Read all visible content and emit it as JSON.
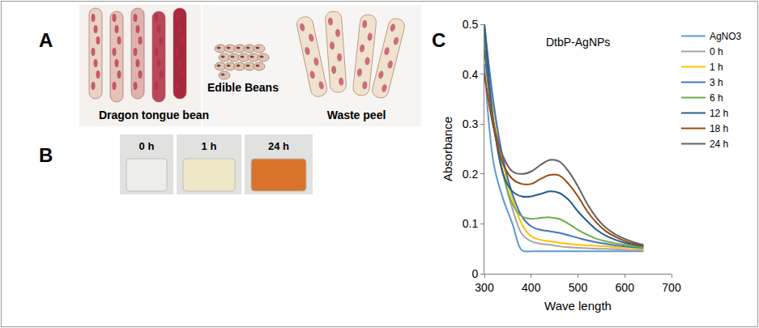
{
  "figure": {
    "panels": [
      {
        "letter": "A",
        "labels": [
          "Dragon tongue bean",
          "Edible Beans",
          "Waste peel"
        ]
      },
      {
        "letter": "B",
        "labels": [
          "0 h",
          "1 h",
          "24 h"
        ]
      },
      {
        "letter": "C"
      }
    ]
  },
  "chart_data": {
    "type": "line",
    "title": "DtbP-AgNPs",
    "x_label": "Wave length",
    "y_label": "Absorbance",
    "x": [
      300,
      320,
      340,
      360,
      380,
      400,
      420,
      440,
      460,
      480,
      500,
      520,
      540,
      560,
      580,
      600,
      620,
      640
    ],
    "series": [
      {
        "name": "AgNO3",
        "color": "#5b9bd5",
        "values": [
          0.42,
          0.22,
          0.15,
          0.1,
          0.047,
          0.045,
          0.045,
          0.045,
          0.045,
          0.045,
          0.045,
          0.045,
          0.045,
          0.045,
          0.045,
          0.045,
          0.045,
          0.045
        ]
      },
      {
        "name": "0 h",
        "color": "#a5a5a5",
        "values": [
          0.48,
          0.3,
          0.2,
          0.13,
          0.08,
          0.065,
          0.06,
          0.058,
          0.055,
          0.053,
          0.052,
          0.051,
          0.05,
          0.05,
          0.049,
          0.048,
          0.047,
          0.047
        ]
      },
      {
        "name": "1 h",
        "color": "#ffc000",
        "values": [
          0.5,
          0.33,
          0.22,
          0.15,
          0.1,
          0.075,
          0.068,
          0.065,
          0.062,
          0.06,
          0.058,
          0.057,
          0.056,
          0.055,
          0.053,
          0.052,
          0.051,
          0.05
        ]
      },
      {
        "name": "3 h",
        "color": "#4472c4",
        "values": [
          0.5,
          0.34,
          0.23,
          0.16,
          0.115,
          0.095,
          0.088,
          0.085,
          0.082,
          0.077,
          0.072,
          0.067,
          0.063,
          0.06,
          0.057,
          0.055,
          0.053,
          0.052
        ]
      },
      {
        "name": "6 h",
        "color": "#70ad47",
        "values": [
          0.47,
          0.3,
          0.2,
          0.14,
          0.115,
          0.11,
          0.112,
          0.113,
          0.11,
          0.1,
          0.088,
          0.078,
          0.07,
          0.065,
          0.061,
          0.058,
          0.055,
          0.053
        ]
      },
      {
        "name": "12 h",
        "color": "#255e91",
        "values": [
          0.5,
          0.3,
          0.2,
          0.165,
          0.155,
          0.155,
          0.16,
          0.165,
          0.162,
          0.148,
          0.125,
          0.105,
          0.088,
          0.076,
          0.068,
          0.062,
          0.058,
          0.055
        ]
      },
      {
        "name": "18 h",
        "color": "#9e480e",
        "values": [
          0.4,
          0.29,
          0.22,
          0.19,
          0.18,
          0.18,
          0.19,
          0.198,
          0.197,
          0.18,
          0.155,
          0.125,
          0.102,
          0.085,
          0.074,
          0.066,
          0.06,
          0.056
        ]
      },
      {
        "name": "24 h",
        "color": "#636363",
        "values": [
          0.45,
          0.3,
          0.235,
          0.205,
          0.2,
          0.205,
          0.218,
          0.228,
          0.225,
          0.205,
          0.175,
          0.14,
          0.112,
          0.092,
          0.079,
          0.07,
          0.063,
          0.058
        ]
      }
    ],
    "xlim": [
      300,
      700
    ],
    "xticks": [
      300,
      400,
      500,
      600,
      700
    ],
    "ylim": [
      0,
      0.5
    ],
    "yticks": [
      0,
      0.1,
      0.2,
      0.3,
      0.4,
      0.5
    ],
    "grid": false,
    "legend": "right"
  }
}
